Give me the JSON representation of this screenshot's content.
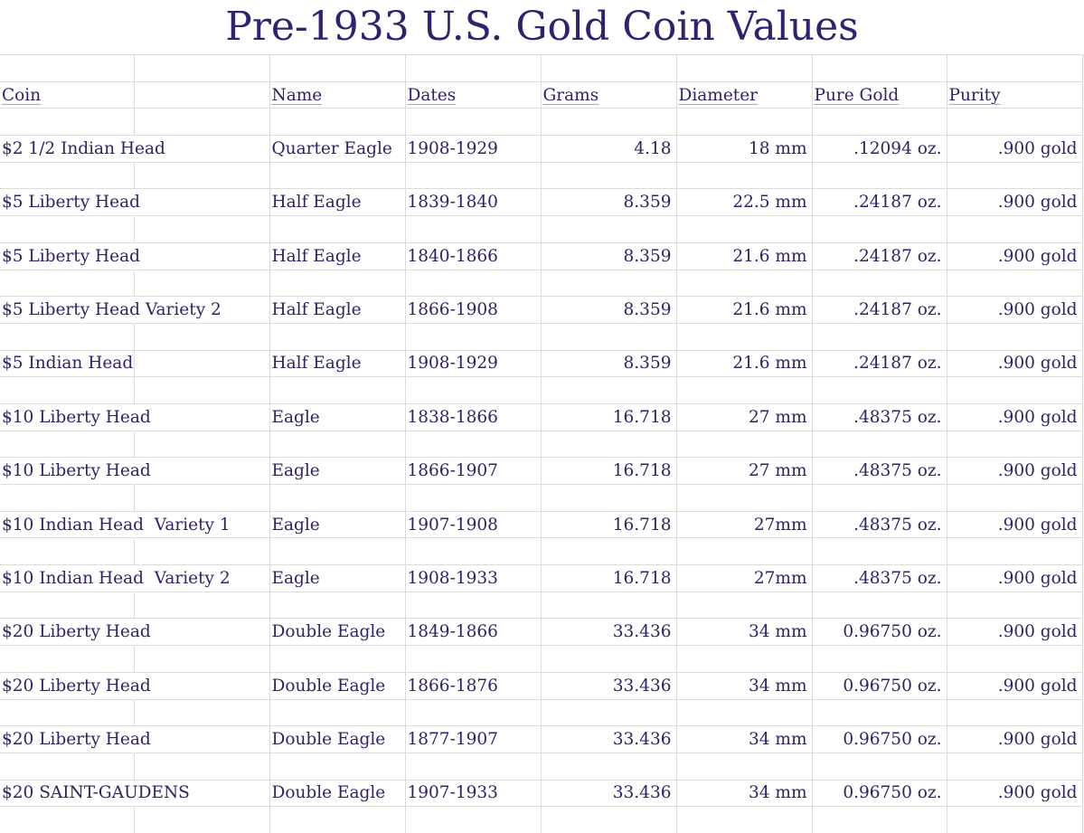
{
  "title": "Pre-1933 U.S. Gold Coin Values",
  "headers": {
    "coin": "Coin",
    "name": "Name",
    "dates": "Dates",
    "grams": "Grams",
    "diameter": "Diameter",
    "pure_gold": "Pure Gold",
    "purity": "Purity"
  },
  "rows": [
    {
      "coin": "$2 1/2 Indian Head",
      "name": "Quarter Eagle",
      "dates": "1908-1929",
      "grams": "4.18",
      "diameter": "18 mm",
      "pure_gold": ".12094 oz.",
      "purity": ".900 gold"
    },
    {
      "coin": "$5 Liberty Head",
      "name": "Half Eagle",
      "dates": "1839-1840",
      "grams": "8.359",
      "diameter": "22.5 mm",
      "pure_gold": ".24187 oz.",
      "purity": ".900 gold"
    },
    {
      "coin": "$5 Liberty Head",
      "name": "Half Eagle",
      "dates": "1840-1866",
      "grams": "8.359",
      "diameter": "21.6 mm",
      "pure_gold": ".24187 oz.",
      "purity": ".900 gold"
    },
    {
      "coin": "$5 Liberty Head Variety 2",
      "name": "Half Eagle",
      "dates": "1866-1908",
      "grams": "8.359",
      "diameter": "21.6 mm",
      "pure_gold": ".24187 oz.",
      "purity": ".900 gold"
    },
    {
      "coin": "$5 Indian Head",
      "name": "Half Eagle",
      "dates": "1908-1929",
      "grams": "8.359",
      "diameter": "21.6 mm",
      "pure_gold": ".24187 oz.",
      "purity": ".900 gold"
    },
    {
      "coin": "$10 Liberty Head",
      "name": "Eagle",
      "dates": "1838-1866",
      "grams": "16.718",
      "diameter": "27 mm",
      "pure_gold": ".48375 oz.",
      "purity": " .900 gold"
    },
    {
      "coin": "$10 Liberty Head",
      "name": "Eagle",
      "dates": "1866-1907",
      "grams": "16.718",
      "diameter": "27 mm",
      "pure_gold": ".48375 oz.",
      "purity": ".900 gold"
    },
    {
      "coin": "$10 Indian Head  Variety 1",
      "name": "Eagle",
      "dates": "1907-1908",
      "grams": "16.718",
      "diameter": "27mm",
      "pure_gold": ".48375 oz.",
      "purity": ".900 gold"
    },
    {
      "coin": "$10 Indian Head  Variety 2",
      "name": "Eagle",
      "dates": "1908-1933",
      "grams": "16.718",
      "diameter": "27mm",
      "pure_gold": ".48375 oz.",
      "purity": ".900 gold"
    },
    {
      "coin": "$20 Liberty Head",
      "name": "Double Eagle",
      "dates": "1849-1866",
      "grams": "33.436",
      "diameter": "34 mm",
      "pure_gold": "0.96750 oz.",
      "purity": ".900 gold"
    },
    {
      "coin": "$20 Liberty Head",
      "name": "Double Eagle",
      "dates": "1866-1876",
      "grams": "33.436",
      "diameter": "34 mm",
      "pure_gold": "0.96750 oz.",
      "purity": ".900 gold"
    },
    {
      "coin": "$20 Liberty Head",
      "name": "Double Eagle",
      "dates": "1877-1907",
      "grams": "33.436",
      "diameter": "34 mm",
      "pure_gold": "0.96750 oz.",
      "purity": ".900 gold"
    },
    {
      "coin": "$20 SAINT-GAUDENS",
      "name": "Double Eagle",
      "dates": "1907-1933",
      "grams": "33.436",
      "diameter": "34 mm",
      "pure_gold": "0.96750 oz.",
      "purity": ".900 gold"
    }
  ],
  "colors": {
    "text": "#2a2566",
    "title": "#2b2470",
    "gridline": "#dcdcdc",
    "background": "#ffffff"
  }
}
